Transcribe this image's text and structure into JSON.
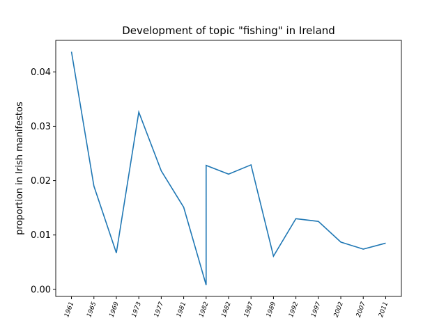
{
  "chart_data": {
    "type": "line",
    "title": "Development of topic \"fishing\" in Ireland",
    "ylabel": "proportion in Irish manifestos",
    "x": [
      0,
      1,
      2,
      3,
      4,
      5,
      6,
      6,
      7,
      8,
      9,
      10,
      11,
      12,
      13,
      14
    ],
    "series": [
      {
        "name": "fishing",
        "color": "#1f77b4",
        "values": [
          0.0437,
          0.019,
          0.0067,
          0.0326,
          0.0218,
          0.0151,
          0.0008,
          0.0228,
          0.0212,
          0.0229,
          0.0061,
          0.013,
          0.0125,
          0.0087,
          0.0074,
          0.0085
        ]
      }
    ],
    "xlim": [
      -0.7,
      14.7
    ],
    "xticks": [
      {
        "value": 0,
        "label": "1961"
      },
      {
        "value": 1,
        "label": "1965"
      },
      {
        "value": 2,
        "label": "1969"
      },
      {
        "value": 3,
        "label": "1973"
      },
      {
        "value": 4,
        "label": "1977"
      },
      {
        "value": 5,
        "label": "1981"
      },
      {
        "value": 6,
        "label": "1982"
      },
      {
        "value": 7,
        "label": "1982"
      },
      {
        "value": 8,
        "label": "1987"
      },
      {
        "value": 9,
        "label": "1989"
      },
      {
        "value": 10,
        "label": "1992"
      },
      {
        "value": 11,
        "label": "1997"
      },
      {
        "value": 12,
        "label": "2002"
      },
      {
        "value": 13,
        "label": "2007"
      },
      {
        "value": 14,
        "label": "2011"
      }
    ],
    "ylim": [
      -0.0013,
      0.0458
    ],
    "yticks": [
      {
        "value": 0,
        "label": "0.00"
      },
      {
        "value": 0.01,
        "label": "0.01"
      },
      {
        "value": 0.02,
        "label": "0.02"
      },
      {
        "value": 0.03,
        "label": "0.03"
      },
      {
        "value": 0.04,
        "label": "0.04"
      }
    ]
  }
}
